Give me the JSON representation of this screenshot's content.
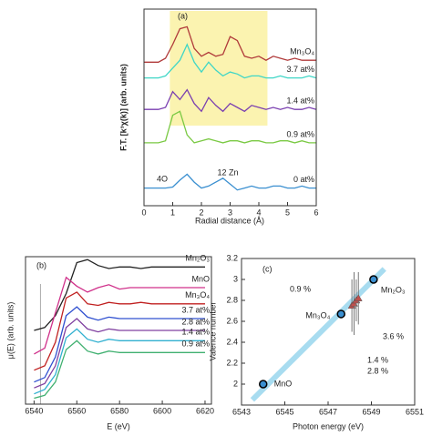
{
  "chart_data": [
    {
      "type": "line",
      "title": "(a)",
      "xlabel": "Radial distance (Å)",
      "ylabel": "F.T. [k³χ(k)] (arb. units)",
      "xlim": [
        0,
        6
      ],
      "xticks": [
        0,
        1,
        2,
        3,
        4,
        5,
        6
      ],
      "ylim": [
        0,
        10
      ],
      "highlight_x": [
        0.9,
        4.3
      ],
      "highlight_color": "#fbf3b0",
      "x": [
        0,
        0.25,
        0.5,
        0.75,
        1,
        1.25,
        1.5,
        1.75,
        2,
        2.25,
        2.5,
        2.75,
        3,
        3.25,
        3.5,
        3.75,
        4,
        4.25,
        4.5,
        4.75,
        5,
        5.25,
        5.5,
        5.75,
        6
      ],
      "series": [
        {
          "name": "Mn₃O₄",
          "color": "#b03a3a",
          "values": [
            7.3,
            7.3,
            7.3,
            7.5,
            8.2,
            9.0,
            9.1,
            8.0,
            7.6,
            7.8,
            7.6,
            7.7,
            8.6,
            8.4,
            7.6,
            7.5,
            7.6,
            7.4,
            7.6,
            7.5,
            7.4,
            7.5,
            7.4,
            7.4,
            7.4
          ]
        },
        {
          "name": "3.7 at%",
          "color": "#3fd6c6",
          "values": [
            6.5,
            6.5,
            6.5,
            6.6,
            7.0,
            7.4,
            8.2,
            7.3,
            6.8,
            7.3,
            6.9,
            6.6,
            6.8,
            6.7,
            6.5,
            6.6,
            6.6,
            6.5,
            6.5,
            6.6,
            6.5,
            6.5,
            6.5,
            6.6,
            6.5
          ]
        },
        {
          "name": "1.4 at%",
          "color": "#7a3fb0",
          "values": [
            4.9,
            4.9,
            4.9,
            5.0,
            5.8,
            5.4,
            5.9,
            5.2,
            4.8,
            5.5,
            5.1,
            4.8,
            5.2,
            5.0,
            4.8,
            5.1,
            5.0,
            4.9,
            5.0,
            4.9,
            5.0,
            4.9,
            4.9,
            5.0,
            4.9
          ]
        },
        {
          "name": "0.9 at%",
          "color": "#7ac943",
          "values": [
            3.2,
            3.2,
            3.2,
            3.3,
            4.6,
            4.8,
            3.6,
            3.2,
            3.3,
            3.4,
            3.3,
            3.2,
            3.3,
            3.3,
            3.2,
            3.3,
            3.3,
            3.2,
            3.2,
            3.3,
            3.3,
            3.2,
            3.3,
            3.2,
            3.2
          ]
        },
        {
          "name": "0 at%",
          "color": "#3a8fd0",
          "values": [
            0.9,
            0.9,
            0.9,
            0.9,
            0.95,
            1.3,
            1.6,
            1.2,
            0.9,
            1.0,
            1.2,
            1.4,
            1.1,
            0.8,
            0.9,
            1.0,
            0.9,
            0.9,
            1.0,
            1.0,
            0.9,
            0.9,
            1.0,
            0.9,
            0.9
          ]
        }
      ],
      "annotations": [
        "4O",
        "12 Zn"
      ]
    },
    {
      "type": "line",
      "title": "(b)",
      "xlabel": "E (eV)",
      "ylabel": "μ(E) (arb. units)",
      "xlim": [
        6536,
        6623
      ],
      "xticks": [
        6540,
        6560,
        6580,
        6600,
        6620
      ],
      "ylim": [
        0,
        10
      ],
      "ref_line_x": 6543,
      "x": [
        6540,
        6545,
        6550,
        6555,
        6560,
        6565,
        6570,
        6575,
        6580,
        6585,
        6590,
        6595,
        6600,
        6605,
        6610,
        6615,
        6620
      ],
      "series": [
        {
          "name": "Mn₂O₃",
          "color": "#222222",
          "values": [
            5.0,
            5.2,
            6.0,
            7.5,
            9.6,
            9.8,
            9.4,
            9.2,
            9.3,
            9.3,
            9.2,
            9.3,
            9.3,
            9.3,
            9.3,
            9.3,
            9.3
          ]
        },
        {
          "name": "MnO",
          "color": "#d0308a",
          "values": [
            3.4,
            3.8,
            6.2,
            8.6,
            8.0,
            7.6,
            7.9,
            8.1,
            7.8,
            7.9,
            7.9,
            7.9,
            7.9,
            7.9,
            7.9,
            7.9,
            7.9
          ]
        },
        {
          "name": "Mn₃O₄",
          "color": "#c02020",
          "values": [
            2.3,
            2.6,
            4.2,
            7.2,
            7.6,
            6.8,
            6.7,
            6.9,
            6.8,
            6.8,
            6.9,
            6.8,
            6.8,
            6.8,
            6.8,
            6.8,
            6.8
          ]
        },
        {
          "name": "3.7 at%",
          "color": "#3050d0",
          "values": [
            1.5,
            1.8,
            3.2,
            6.0,
            6.6,
            5.9,
            5.7,
            5.9,
            5.8,
            5.8,
            5.8,
            5.8,
            5.8,
            5.8,
            5.8,
            5.8,
            5.8
          ]
        },
        {
          "name": "2.8 at%",
          "color": "#8040a0",
          "values": [
            1.1,
            1.4,
            2.6,
            5.2,
            5.8,
            5.1,
            4.9,
            5.1,
            5.0,
            5.0,
            5.0,
            5.0,
            5.0,
            5.0,
            5.0,
            5.0,
            5.0
          ]
        },
        {
          "name": "1.4 at%",
          "color": "#30b0d0",
          "values": [
            0.7,
            1.0,
            2.0,
            4.5,
            5.1,
            4.4,
            4.2,
            4.4,
            4.3,
            4.3,
            4.3,
            4.3,
            4.3,
            4.3,
            4.3,
            4.3,
            4.3
          ]
        },
        {
          "name": "0.9 at%",
          "color": "#40b070",
          "values": [
            0.4,
            0.6,
            1.5,
            3.7,
            4.3,
            3.6,
            3.4,
            3.6,
            3.5,
            3.5,
            3.5,
            3.5,
            3.5,
            3.5,
            3.5,
            3.5,
            3.5
          ]
        }
      ]
    },
    {
      "type": "scatter",
      "title": "(c)",
      "xlabel": "Photon energy (eV)",
      "ylabel": "Valence number",
      "xlim": [
        6543,
        6551
      ],
      "xticks": [
        6543,
        6545,
        6547,
        6549,
        6551
      ],
      "ylim": [
        1.8,
        3.2
      ],
      "yticks": [
        2,
        2.2,
        2.4,
        2.6,
        2.8,
        3,
        3.2
      ],
      "fit": {
        "color": "#a8dcf0",
        "x": [
          6543.5,
          6549.6
        ],
        "y": [
          1.85,
          3.1
        ]
      },
      "references": {
        "color": "#3a8fd0",
        "labels": [
          "MnO",
          "Mn₃O₄",
          "Mn₂O₃"
        ],
        "x": [
          6544,
          6547.6,
          6549.1
        ],
        "values": [
          2.0,
          2.67,
          3.0
        ]
      },
      "samples": {
        "color": "#c0504d",
        "x": [
          6548.1,
          6548.2,
          6548.3,
          6548.4
        ],
        "values": [
          2.75,
          2.77,
          2.8,
          2.82
        ],
        "errors": [
          0.25,
          0.3,
          0.2,
          0.25
        ]
      },
      "annotations": [
        "0.9 %",
        "3.6 %",
        "1.4 %",
        "2.8 %"
      ]
    }
  ]
}
